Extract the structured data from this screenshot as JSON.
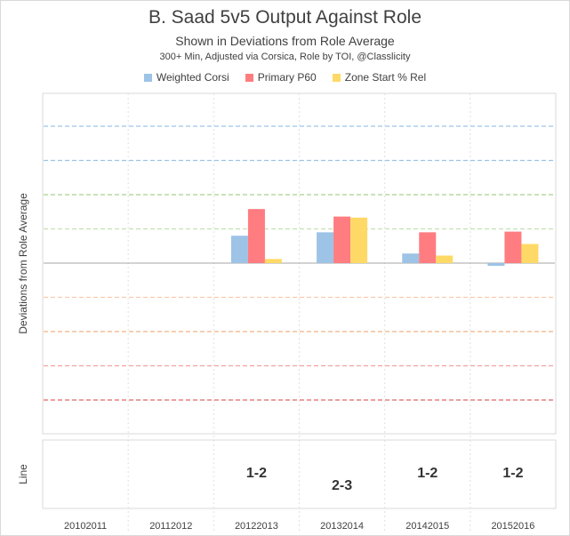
{
  "chart_data": {
    "type": "bar",
    "title": "B. Saad 5v5 Output Against Role",
    "subtitle": "Shown  in Deviations from Role Average",
    "note": "300+ Min, Adjusted via Corsica, Role by TOI, @Classlicity",
    "ylabel": "Deviations from Role Average",
    "line_panel_label": "Line",
    "categories": [
      "20102011",
      "20112012",
      "20122013",
      "20132014",
      "20142015",
      "20152016"
    ],
    "ylim": [
      -4,
      4
    ],
    "grid": true,
    "legend_position": "top",
    "series": [
      {
        "name": "Weighted Corsi",
        "color": "#9DC3E6",
        "values": [
          null,
          null,
          0.8,
          0.9,
          0.28,
          -0.08
        ]
      },
      {
        "name": "Primary P60",
        "color": "#FF7C80",
        "values": [
          null,
          null,
          1.58,
          1.36,
          0.9,
          0.92
        ]
      },
      {
        "name": "Zone Start % Rel",
        "color": "#FFD966",
        "values": [
          null,
          null,
          0.12,
          1.33,
          0.22,
          0.56
        ]
      }
    ],
    "gridlines": [
      {
        "value": 4,
        "color": "#9DC3E6"
      },
      {
        "value": 3,
        "color": "#9DC3E6"
      },
      {
        "value": 2,
        "color": "#A9D18E"
      },
      {
        "value": 1,
        "color": "#C5E0B4"
      },
      {
        "value": -1,
        "color": "#F8CBAD"
      },
      {
        "value": -2,
        "color": "#F4B183"
      },
      {
        "value": -3,
        "color": "#F4A0A0"
      },
      {
        "value": -4,
        "color": "#E06666"
      }
    ],
    "line_assignments": [
      "",
      "",
      "1-2",
      "2-3",
      "1-2",
      "1-2"
    ],
    "line_levels": [
      null,
      null,
      1,
      0,
      1,
      1
    ]
  }
}
